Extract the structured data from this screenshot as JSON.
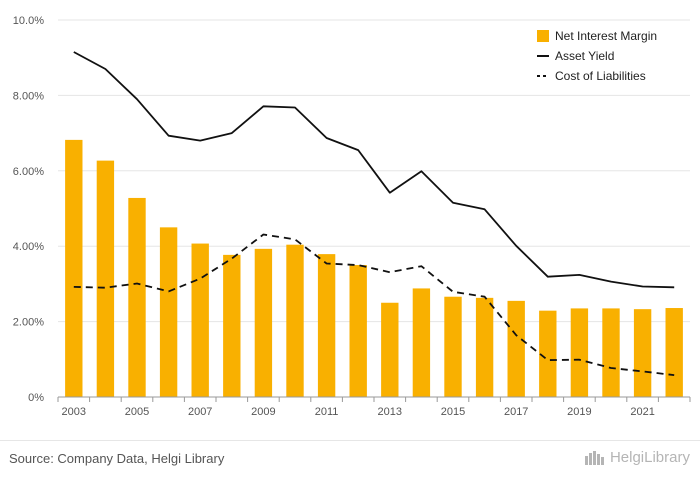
{
  "chart_data": {
    "type": "bar+line",
    "x": [
      "2003",
      "2004",
      "2005",
      "2006",
      "2007",
      "2008",
      "2009",
      "2010",
      "2011",
      "2012",
      "2013",
      "2014",
      "2015",
      "2016",
      "2017",
      "2018",
      "2019",
      "2020",
      "2021",
      "2022"
    ],
    "x_tick_labels": [
      "2003",
      "2005",
      "2007",
      "2009",
      "2011",
      "2013",
      "2015",
      "2017",
      "2019",
      "2021"
    ],
    "y_tick_labels": [
      "0%",
      "2.00%",
      "4.00%",
      "6.00%",
      "8.00%",
      "10.0%"
    ],
    "ylim": [
      0,
      10
    ],
    "grid": true,
    "legend_position": "top-right",
    "series": [
      {
        "name": "Net Interest Margin",
        "type": "bar",
        "values": [
          6.82,
          6.27,
          5.28,
          4.5,
          4.07,
          3.77,
          3.93,
          4.04,
          3.79,
          3.5,
          2.5,
          2.88,
          2.66,
          2.63,
          2.55,
          2.29,
          2.35,
          2.35,
          2.33,
          2.36
        ]
      },
      {
        "name": "Asset Yield",
        "type": "line",
        "style": "solid",
        "values": [
          9.15,
          8.7,
          7.9,
          6.93,
          6.8,
          7.0,
          7.71,
          7.68,
          6.87,
          6.55,
          5.42,
          5.99,
          5.15,
          4.98,
          4.01,
          3.19,
          3.24,
          3.06,
          2.93,
          2.91
        ]
      },
      {
        "name": "Cost of Liabilities",
        "type": "line",
        "style": "dashed",
        "values": [
          2.92,
          2.9,
          3.01,
          2.8,
          3.14,
          3.67,
          4.31,
          4.18,
          3.54,
          3.5,
          3.31,
          3.47,
          2.79,
          2.66,
          1.64,
          0.98,
          0.99,
          0.77,
          0.68,
          0.58
        ]
      }
    ],
    "colors": {
      "bar": "#f9b000",
      "line": "#111111",
      "grid": "#e5e5e5",
      "axis": "#999999"
    }
  },
  "footer": {
    "source": "Source: Company Data, Helgi Library",
    "logo_text": "HelgiLibrary"
  }
}
